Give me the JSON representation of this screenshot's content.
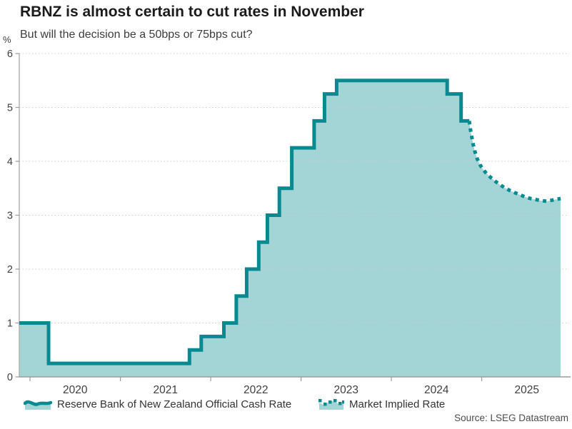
{
  "header": {
    "title": "RBNZ is almost certain to cut rates in November",
    "subtitle": "But will the decision be a 50bps or 75bps cut?"
  },
  "source": "Source: LSEG Datastream",
  "colors": {
    "accent": "#088a90",
    "area_fill": "#a3d5d7",
    "grid": "#cccccc",
    "axis": "#a3a3a3",
    "tick_text": "#3f3f3f"
  },
  "chart_data": {
    "type": "area",
    "title": "RBNZ is almost certain to cut rates in November",
    "subtitle": "But will the decision be a 50bps or 75bps cut?",
    "ylabel": "%",
    "xlabel": "",
    "ylim": [
      0,
      6
    ],
    "yticks": [
      0,
      1,
      2,
      3,
      4,
      5,
      6
    ],
    "x_domain": [
      2019.881,
      2025.968
    ],
    "year_ticks": [
      2020,
      2021,
      2022,
      2023,
      2024,
      2025
    ],
    "grid": "horizontal-dotted",
    "legend_position": "bottom",
    "series": [
      {
        "name": "Reserve Bank of New Zealand Official Cash Rate",
        "style": "solid-step",
        "color": "#088a90",
        "points": [
          [
            2019.881,
            1.0
          ],
          [
            2020.205,
            1.0
          ],
          [
            2020.205,
            0.25
          ],
          [
            2021.765,
            0.25
          ],
          [
            2021.765,
            0.5
          ],
          [
            2021.895,
            0.5
          ],
          [
            2021.895,
            0.75
          ],
          [
            2022.146,
            0.75
          ],
          [
            2022.146,
            1.0
          ],
          [
            2022.283,
            1.0
          ],
          [
            2022.283,
            1.5
          ],
          [
            2022.398,
            1.5
          ],
          [
            2022.398,
            2.0
          ],
          [
            2022.532,
            2.0
          ],
          [
            2022.532,
            2.5
          ],
          [
            2022.627,
            2.5
          ],
          [
            2022.627,
            3.0
          ],
          [
            2022.76,
            3.0
          ],
          [
            2022.76,
            3.5
          ],
          [
            2022.898,
            3.5
          ],
          [
            2022.898,
            4.25
          ],
          [
            2023.145,
            4.25
          ],
          [
            2023.145,
            4.75
          ],
          [
            2023.26,
            4.75
          ],
          [
            2023.26,
            5.25
          ],
          [
            2023.394,
            5.25
          ],
          [
            2023.394,
            5.5
          ],
          [
            2024.618,
            5.5
          ],
          [
            2024.618,
            5.25
          ],
          [
            2024.772,
            5.25
          ],
          [
            2024.772,
            4.75
          ],
          [
            2024.862,
            4.75
          ]
        ]
      },
      {
        "name": "Market Implied Rate",
        "style": "dotted",
        "color": "#088a90",
        "points": [
          [
            2024.862,
            4.75
          ],
          [
            2024.872,
            4.62
          ],
          [
            2024.888,
            4.47
          ],
          [
            2024.905,
            4.32
          ],
          [
            2024.925,
            4.18
          ],
          [
            2024.95,
            4.05
          ],
          [
            2024.98,
            3.94
          ],
          [
            2025.015,
            3.85
          ],
          [
            2025.055,
            3.77
          ],
          [
            2025.1,
            3.7
          ],
          [
            2025.15,
            3.63
          ],
          [
            2025.2,
            3.57
          ],
          [
            2025.255,
            3.51
          ],
          [
            2025.31,
            3.46
          ],
          [
            2025.365,
            3.42
          ],
          [
            2025.42,
            3.38
          ],
          [
            2025.48,
            3.34
          ],
          [
            2025.54,
            3.31
          ],
          [
            2025.6,
            3.29
          ],
          [
            2025.66,
            3.27
          ],
          [
            2025.72,
            3.26
          ],
          [
            2025.78,
            3.28
          ],
          [
            2025.84,
            3.3
          ],
          [
            2025.874,
            3.31
          ]
        ]
      }
    ]
  },
  "legend": {
    "items": [
      {
        "icon": "area-line-swatch",
        "label": "Reserve Bank of New Zealand Official Cash Rate"
      },
      {
        "icon": "dotted-line-swatch",
        "label": "Market Implied Rate"
      }
    ]
  }
}
